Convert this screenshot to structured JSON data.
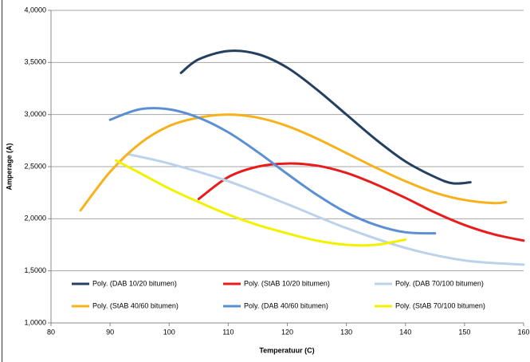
{
  "chart_data": {
    "type": "line",
    "x_label": "Temperatuur (C)",
    "y_label": "Amperage (A)",
    "xlim": [
      80,
      160
    ],
    "xticks": [
      80,
      90,
      100,
      110,
      120,
      130,
      140,
      150,
      160
    ],
    "ylim": [
      1,
      4
    ],
    "yticks": [
      {
        "value": 1,
        "label": "1,0000"
      },
      {
        "value": 1.5,
        "label": "1,5000"
      },
      {
        "value": 2,
        "label": "2,0000"
      },
      {
        "value": 2.5,
        "label": "2,5000"
      },
      {
        "value": 3,
        "label": "3,0000"
      },
      {
        "value": 3.5,
        "label": "3,5000"
      },
      {
        "value": 4,
        "label": "4,0000"
      }
    ],
    "grid": true,
    "series": [
      {
        "name": "Poly. (DAB 10/20 bitumen)",
        "color": "#243f60",
        "x": [
          102,
          105,
          110,
          115,
          120,
          125,
          130,
          135,
          140,
          145,
          148,
          151
        ],
        "values": [
          3.4,
          3.53,
          3.61,
          3.58,
          3.45,
          3.24,
          3.0,
          2.76,
          2.55,
          2.4,
          2.34,
          2.35
        ]
      },
      {
        "name": "Poly. (StAB 10/20 bitumen)",
        "color": "#e81c1c",
        "x": [
          105,
          110,
          115,
          120,
          125,
          130,
          135,
          140,
          145,
          150,
          155,
          160
        ],
        "values": [
          2.19,
          2.4,
          2.5,
          2.53,
          2.51,
          2.44,
          2.33,
          2.2,
          2.06,
          1.94,
          1.85,
          1.79
        ]
      },
      {
        "name": "Poly. (DAB 70/100 bitumen)",
        "color": "#bcd2ea",
        "x": [
          93,
          100,
          110,
          120,
          130,
          140,
          150,
          160
        ],
        "values": [
          2.62,
          2.53,
          2.36,
          2.14,
          1.91,
          1.72,
          1.6,
          1.56
        ]
      },
      {
        "name": "Poly. (StAB 40/60 bitumen)",
        "color": "#f7b21b",
        "x": [
          85,
          90,
          95,
          100,
          105,
          110,
          115,
          120,
          125,
          130,
          135,
          140,
          145,
          150,
          155,
          157
        ],
        "values": [
          2.08,
          2.45,
          2.72,
          2.89,
          2.97,
          3.0,
          2.97,
          2.89,
          2.77,
          2.63,
          2.49,
          2.36,
          2.25,
          2.18,
          2.15,
          2.16
        ]
      },
      {
        "name": "Poly. (DAB 40/60 bitumen)",
        "color": "#5b8fd4",
        "x": [
          90,
          95,
          100,
          105,
          110,
          115,
          120,
          125,
          130,
          135,
          140,
          145
        ],
        "values": [
          2.95,
          3.05,
          3.05,
          2.97,
          2.83,
          2.64,
          2.43,
          2.23,
          2.06,
          1.94,
          1.87,
          1.86
        ]
      },
      {
        "name": "Poly. (StAB 70/100 bitumen)",
        "color": "#f2f200",
        "x": [
          91,
          95,
          100,
          105,
          110,
          115,
          120,
          125,
          130,
          135,
          140
        ],
        "values": [
          2.56,
          2.44,
          2.29,
          2.16,
          2.04,
          1.94,
          1.86,
          1.79,
          1.75,
          1.75,
          1.8
        ]
      }
    ]
  }
}
